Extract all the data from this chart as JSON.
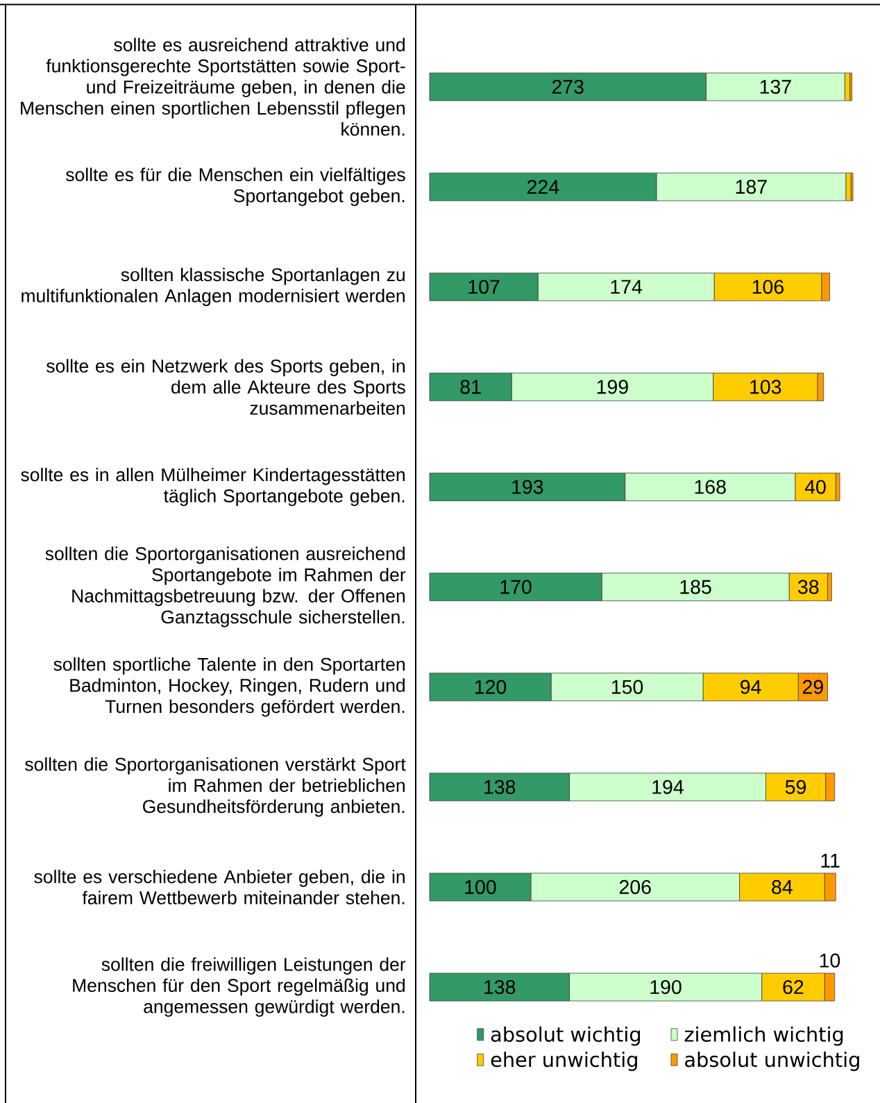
{
  "chart_data": {
    "type": "bar",
    "orientation": "horizontal",
    "stacked": true,
    "legend": "bottom",
    "categories": [
      "sollte es ausreichend attraktive und funktionsgerechte Sportstätten sowie Sport- und Freizeiträume geben, in denen die Menschen einen sportlichen Lebensstil pflegen können.",
      "sollte es für die Menschen ein vielfältiges Sportangebot geben.",
      "sollten klassische Sportanlagen zu multifunktionalen Anlagen modernisiert werden",
      "sollte es ein Netzwerk des Sports geben, in dem alle Akteure des Sports zusammenarbeiten",
      "sollte es in allen Mülheimer Kindertagesstätten täglich Sportangebote geben.",
      "sollten die Sportorganisationen ausreichend Sportangebote im Rahmen der Nachmittagsbetreuung bzw. der Offenen Ganztagsschule sicherstellen.",
      "sollten sportliche Talente in den Sportarten Badminton, Hockey, Ringen, Rudern und Turnen besonders gefördert werden.",
      "sollten die Sportorganisationen verstärkt Sport im Rahmen der betrieblichen Gesundheitsförderung anbieten.",
      "sollte es verschiedene Anbieter geben, die in fairem Wettbewerb miteinander stehen.",
      "sollten die freiwilligen Leistungen der Menschen für den Sport regelmäßig und angemessen gewürdigt werden."
    ],
    "series": [
      {
        "name": "absolut wichtig",
        "color": "#339966",
        "values": [
          273,
          224,
          107,
          81,
          193,
          170,
          120,
          138,
          100,
          138
        ],
        "value_labels": [
          "273",
          "224",
          "107",
          "81",
          "193",
          "170",
          "120",
          "138",
          "100",
          "138"
        ]
      },
      {
        "name": "ziemlich wichtig",
        "color": "#ccffcc",
        "values": [
          137,
          187,
          174,
          199,
          168,
          185,
          150,
          194,
          206,
          190
        ],
        "value_labels": [
          "137",
          "187",
          "174",
          "199",
          "168",
          "185",
          "150",
          "194",
          "206",
          "190"
        ]
      },
      {
        "name": "eher unwichtig",
        "color": "#ffcc00",
        "values": [
          5,
          5,
          106,
          103,
          40,
          38,
          94,
          59,
          84,
          62
        ],
        "value_labels": [
          null,
          null,
          "106",
          "103",
          "40",
          "38",
          "94",
          "59",
          "84",
          "62"
        ]
      },
      {
        "name": "absolut unwichtig",
        "color": "#ff9900",
        "values": [
          2,
          2,
          8,
          6,
          4,
          4,
          29,
          9,
          11,
          10
        ],
        "value_labels": [
          null,
          null,
          null,
          null,
          null,
          null,
          "29",
          null,
          "11",
          "10"
        ]
      }
    ]
  }
}
